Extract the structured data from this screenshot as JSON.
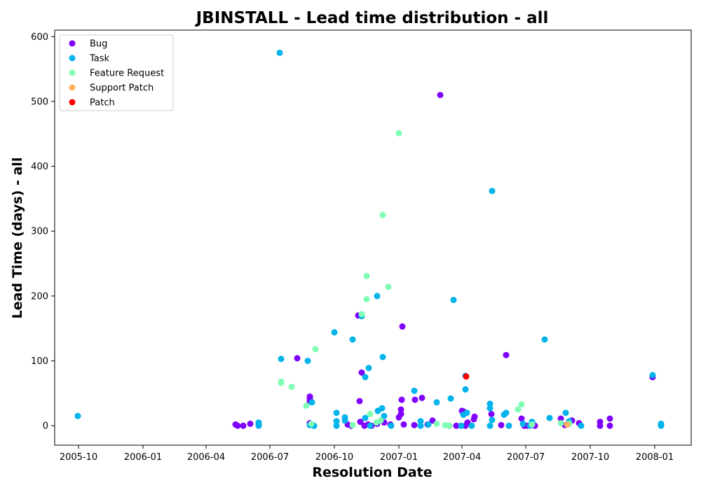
{
  "chart_data": {
    "type": "scatter",
    "title": "JBINSTALL - Lead time distribution - all",
    "xlabel": "Resolution Date",
    "ylabel": "Lead Time (days) - all",
    "xlim": [
      "2005-08-28",
      "2008-02-22"
    ],
    "ylim": [
      -30,
      610
    ],
    "x_ticks": [
      "2005-10",
      "2006-01",
      "2006-04",
      "2006-07",
      "2006-10",
      "2007-01",
      "2007-04",
      "2007-07",
      "2007-10",
      "2008-01"
    ],
    "y_ticks": [
      0,
      100,
      200,
      300,
      400,
      500,
      600
    ],
    "grid": false,
    "legend_position": "top-left",
    "series": [
      {
        "name": "Bug",
        "color": "#8000ff",
        "points": [
          [
            "2006-05-13",
            2
          ],
          [
            "2006-05-16",
            0
          ],
          [
            "2006-05-24",
            0
          ],
          [
            "2006-06-03",
            3
          ],
          [
            "2006-08-09",
            104
          ],
          [
            "2006-08-27",
            45
          ],
          [
            "2006-08-27",
            42
          ],
          [
            "2006-08-27",
            38
          ],
          [
            "2006-08-27",
            4
          ],
          [
            "2006-08-30",
            2
          ],
          [
            "2006-10-20",
            2
          ],
          [
            "2006-10-25",
            0
          ],
          [
            "2006-11-04",
            170
          ],
          [
            "2006-11-06",
            38
          ],
          [
            "2006-11-07",
            6
          ],
          [
            "2006-11-09",
            82
          ],
          [
            "2006-11-13",
            0
          ],
          [
            "2006-11-18",
            2
          ],
          [
            "2006-11-23",
            0
          ],
          [
            "2006-12-01",
            3
          ],
          [
            "2006-12-11",
            5
          ],
          [
            "2006-12-20",
            2
          ],
          [
            "2007-01-01",
            13
          ],
          [
            "2007-01-04",
            18
          ],
          [
            "2007-01-04",
            25
          ],
          [
            "2007-01-05",
            40
          ],
          [
            "2007-01-06",
            153
          ],
          [
            "2007-01-08",
            2
          ],
          [
            "2007-01-23",
            1
          ],
          [
            "2007-01-24",
            40
          ],
          [
            "2007-02-03",
            43
          ],
          [
            "2007-02-11",
            2
          ],
          [
            "2007-02-18",
            8
          ],
          [
            "2007-03-01",
            510
          ],
          [
            "2007-03-14",
            0
          ],
          [
            "2007-03-24",
            0
          ],
          [
            "2007-04-01",
            23
          ],
          [
            "2007-04-03",
            22
          ],
          [
            "2007-04-06",
            0
          ],
          [
            "2007-04-09",
            5
          ],
          [
            "2007-04-18",
            10
          ],
          [
            "2007-04-19",
            14
          ],
          [
            "2007-05-13",
            18
          ],
          [
            "2007-05-27",
            1
          ],
          [
            "2007-06-03",
            109
          ],
          [
            "2007-06-25",
            11
          ],
          [
            "2007-06-29",
            0
          ],
          [
            "2007-07-03",
            0
          ],
          [
            "2007-07-14",
            0
          ],
          [
            "2007-08-20",
            11
          ],
          [
            "2007-08-26",
            1
          ],
          [
            "2007-09-05",
            8
          ],
          [
            "2007-09-15",
            4
          ],
          [
            "2007-10-15",
            6
          ],
          [
            "2007-10-15",
            0
          ],
          [
            "2007-10-29",
            11
          ],
          [
            "2007-10-29",
            0
          ],
          [
            "2007-12-29",
            75
          ],
          [
            "2008-01-10",
            2
          ],
          [
            "2008-01-10",
            1
          ]
        ]
      },
      {
        "name": "Task",
        "color": "#00b4eb",
        "points": [
          [
            "2005-09-30",
            15
          ],
          [
            "2006-06-15",
            5
          ],
          [
            "2006-06-15",
            2
          ],
          [
            "2006-06-15",
            0
          ],
          [
            "2006-07-15",
            575
          ],
          [
            "2006-07-17",
            103
          ],
          [
            "2006-08-24",
            100
          ],
          [
            "2006-08-27",
            1
          ],
          [
            "2006-08-30",
            36
          ],
          [
            "2006-09-02",
            0
          ],
          [
            "2006-10-01",
            144
          ],
          [
            "2006-10-04",
            7
          ],
          [
            "2006-10-04",
            20
          ],
          [
            "2006-10-04",
            0
          ],
          [
            "2006-10-16",
            13
          ],
          [
            "2006-10-16",
            8
          ],
          [
            "2006-10-27",
            133
          ],
          [
            "2006-11-09",
            169
          ],
          [
            "2006-11-14",
            12
          ],
          [
            "2006-11-14",
            75
          ],
          [
            "2006-11-19",
            89
          ],
          [
            "2006-11-21",
            0
          ],
          [
            "2006-12-01",
            200
          ],
          [
            "2006-12-02",
            23
          ],
          [
            "2006-12-08",
            27
          ],
          [
            "2006-12-09",
            106
          ],
          [
            "2006-12-11",
            15
          ],
          [
            "2006-12-21",
            0
          ],
          [
            "2007-01-23",
            54
          ],
          [
            "2007-02-01",
            7
          ],
          [
            "2007-02-01",
            0
          ],
          [
            "2007-02-12",
            2
          ],
          [
            "2007-02-24",
            36
          ],
          [
            "2007-03-16",
            42
          ],
          [
            "2007-03-20",
            194
          ],
          [
            "2007-03-31",
            0
          ],
          [
            "2007-04-03",
            17
          ],
          [
            "2007-04-06",
            77
          ],
          [
            "2007-04-06",
            56
          ],
          [
            "2007-04-08",
            20
          ],
          [
            "2007-04-15",
            0
          ],
          [
            "2007-05-11",
            34
          ],
          [
            "2007-05-11",
            27
          ],
          [
            "2007-05-11",
            0
          ],
          [
            "2007-05-14",
            362
          ],
          [
            "2007-05-14",
            9
          ],
          [
            "2007-05-31",
            17
          ],
          [
            "2007-06-03",
            20
          ],
          [
            "2007-06-07",
            0
          ],
          [
            "2007-06-27",
            3
          ],
          [
            "2007-07-07",
            0
          ],
          [
            "2007-07-10",
            6
          ],
          [
            "2007-07-28",
            133
          ],
          [
            "2007-08-04",
            12
          ],
          [
            "2007-08-27",
            20
          ],
          [
            "2007-09-01",
            7
          ],
          [
            "2007-09-18",
            0
          ],
          [
            "2007-12-29",
            78
          ],
          [
            "2008-01-10",
            3
          ],
          [
            "2008-01-10",
            0
          ]
        ]
      },
      {
        "name": "Feature Request",
        "color": "#80ffb4",
        "points": [
          [
            "2006-07-17",
            68
          ],
          [
            "2006-07-17",
            66
          ],
          [
            "2006-08-01",
            60
          ],
          [
            "2006-08-22",
            31
          ],
          [
            "2006-08-29",
            3
          ],
          [
            "2006-09-04",
            118
          ],
          [
            "2006-10-27",
            1
          ],
          [
            "2006-11-09",
            172
          ],
          [
            "2006-11-16",
            231
          ],
          [
            "2006-11-16",
            195
          ],
          [
            "2006-11-21",
            18
          ],
          [
            "2006-11-30",
            5
          ],
          [
            "2006-12-06",
            8
          ],
          [
            "2006-12-09",
            325
          ],
          [
            "2006-12-17",
            214
          ],
          [
            "2007-01-01",
            451
          ],
          [
            "2007-02-24",
            3
          ],
          [
            "2007-03-08",
            1
          ],
          [
            "2007-03-14",
            0
          ],
          [
            "2007-06-20",
            25
          ],
          [
            "2007-06-25",
            33
          ],
          [
            "2007-07-10",
            2
          ],
          [
            "2007-08-20",
            4
          ],
          [
            "2007-09-01",
            3
          ]
        ]
      },
      {
        "name": "Support Patch",
        "color": "#ffb360",
        "points": [
          [
            "2007-08-29",
            2
          ]
        ]
      },
      {
        "name": "Patch",
        "color": "#ff0000",
        "points": [
          [
            "2007-04-07",
            76
          ]
        ]
      }
    ]
  }
}
